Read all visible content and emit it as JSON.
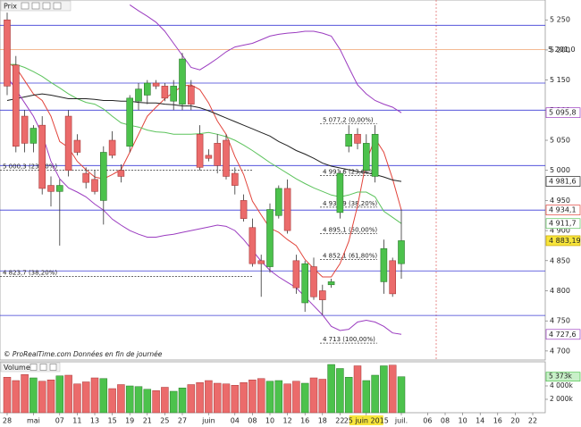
{
  "chart_data": {
    "type": "candlestick",
    "title": "Prix",
    "categories": [
      "28",
      null,
      null,
      "mai",
      null,
      null,
      "07",
      null,
      "11",
      null,
      "13",
      null,
      "15",
      null,
      "19",
      null,
      "21",
      null,
      "25",
      null,
      "27",
      null,
      null,
      "juin",
      null,
      null,
      "04",
      null,
      "08",
      null,
      "10",
      null,
      "12",
      null,
      "16",
      null,
      "18",
      null,
      "22",
      null,
      null,
      "25 juin 2015",
      null,
      null,
      null,
      "juil."
    ],
    "future_categories": [
      null,
      null,
      "06",
      null,
      "08",
      null,
      "10",
      null,
      "14",
      null,
      "16",
      null,
      "20",
      null,
      "22"
    ],
    "open": [
      5250,
      5175,
      5090,
      5045,
      5075,
      4975,
      4965,
      5090,
      5050,
      4995,
      4985,
      4950,
      5050,
      5000,
      5040,
      5115,
      5125,
      5145,
      5140,
      5115,
      5110,
      5140,
      5060,
      5025,
      5045,
      5050,
      4995,
      4950,
      4905,
      4850,
      4840,
      4925,
      4970,
      4850,
      4780,
      4840,
      4800,
      4810,
      4930,
      5040,
      5060,
      5000,
      4990,
      4815,
      4850,
      4845
    ],
    "high": [
      5262,
      5190,
      5100,
      5075,
      5090,
      4990,
      4985,
      5100,
      5060,
      5005,
      5000,
      5040,
      5065,
      5010,
      5125,
      5145,
      5150,
      5150,
      5145,
      5150,
      5195,
      5150,
      5075,
      5035,
      5060,
      5060,
      5005,
      4960,
      4920,
      4860,
      4945,
      4975,
      4985,
      4860,
      4850,
      4855,
      4810,
      4820,
      5000,
      5075,
      5070,
      5060,
      5075,
      4885,
      4855,
      4935
    ],
    "low": [
      5125,
      5030,
      5030,
      5030,
      4960,
      4940,
      4875,
      4990,
      5025,
      4970,
      4960,
      4910,
      5020,
      4980,
      5030,
      5100,
      5110,
      5135,
      5115,
      5100,
      5100,
      5100,
      5000,
      5015,
      4995,
      4985,
      4960,
      4915,
      4840,
      4790,
      4830,
      4920,
      4895,
      4795,
      4765,
      4785,
      4760,
      4805,
      4920,
      5030,
      5035,
      4995,
      4980,
      4795,
      4790,
      4820
    ],
    "close": [
      5140,
      5040,
      5045,
      5070,
      4970,
      4965,
      4975,
      5000,
      5030,
      4980,
      4965,
      5030,
      5025,
      4990,
      5120,
      5135,
      5145,
      5140,
      5120,
      5140,
      5185,
      5110,
      5005,
      5020,
      5008,
      4990,
      4975,
      4920,
      4845,
      4845,
      4935,
      4970,
      4900,
      4805,
      4845,
      4790,
      4785,
      4815,
      4995,
      5060,
      5045,
      5045,
      5060,
      4870,
      4795,
      4883.19
    ],
    "close_label": "4 883,19",
    "ylim": [
      4685,
      5283
    ],
    "yticks": [
      {
        "value": 5250,
        "label": "5 250"
      },
      {
        "value": 5200,
        "label": "5 200"
      },
      {
        "value": 5150,
        "label": "5 150"
      },
      {
        "value": 5100,
        "label": "5 100"
      },
      {
        "value": 5050,
        "label": "5 050"
      },
      {
        "value": 5000,
        "label": "5 000"
      },
      {
        "value": 4950,
        "label": "4 950"
      },
      {
        "value": 4900,
        "label": "4 900"
      },
      {
        "value": 4850,
        "label": "4 850"
      },
      {
        "value": 4800,
        "label": "4 800"
      },
      {
        "value": 4750,
        "label": "4 750"
      },
      {
        "value": 4700,
        "label": "4 700"
      }
    ],
    "series": [
      {
        "color": "#e2453c",
        "last_label": "4 934,1",
        "values": [
          5179,
          5171,
          5149,
          5127,
          5116,
          5090,
          5048,
          5038,
          5015,
          5001,
          4989,
          4986,
          4993,
          5001,
          5030,
          5060,
          5090,
          5105,
          5119,
          5130,
          5140,
          5142,
          5134,
          5112,
          5082,
          5060,
          5023,
          4993,
          4949,
          4926,
          4904,
          4897,
          4885,
          4875,
          4852,
          4837,
          4823,
          4823,
          4845,
          4882,
          4941,
          5015,
          5053,
          5030,
          4986,
          4934.1
        ]
      },
      {
        "color": "#5cc35c",
        "last_label": "4 911,7",
        "values": [
          5176,
          5176,
          5171,
          5164,
          5156,
          5146,
          5137,
          5127,
          5119,
          5113,
          5110,
          5102,
          5090,
          5079,
          5075,
          5072,
          5067,
          5064,
          5063,
          5060,
          5060,
          5060,
          5061,
          5063,
          5060,
          5056,
          5050,
          5042,
          5033,
          5023,
          5013,
          5004,
          4995,
          4986,
          4978,
          4971,
          4965,
          4959,
          4956,
          4959,
          4964,
          4964,
          4956,
          4932,
          4922,
          4911.7
        ]
      },
      {
        "color": "#222222",
        "last_label": "4 981,6",
        "values": [
          5116,
          5119,
          5122,
          5125,
          5127,
          5125,
          5122,
          5119,
          5119,
          5119,
          5118,
          5116,
          5116,
          5115,
          5115,
          5113,
          5112,
          5112,
          5110,
          5109,
          5107,
          5107,
          5104,
          5099,
          5093,
          5087,
          5081,
          5075,
          5069,
          5063,
          5057,
          5048,
          5041,
          5033,
          5027,
          5020,
          5012,
          5007,
          5004,
          5001,
          4998,
          4996,
          4993,
          4989,
          4984,
          4981.6
        ]
      },
      {
        "color": "#9b3cc0",
        "last_label": "5 095,8",
        "values": [
          null,
          null,
          null,
          null,
          null,
          null,
          null,
          null,
          null,
          null,
          null,
          null,
          null,
          null,
          5275,
          5265,
          5256,
          5246,
          5231,
          5211,
          5191,
          5171,
          5167,
          5176,
          5186,
          5197,
          5205,
          5208,
          5211,
          5217,
          5223,
          5226,
          5228,
          5229,
          5231,
          5231,
          5228,
          5223,
          5201,
          5171,
          5142,
          5127,
          5116,
          5110,
          5105,
          5095.8
        ]
      },
      {
        "color": "#9b3cc0",
        "last_label": "4 727,6",
        "values": [
          5156,
          5134,
          5112,
          5090,
          5060,
          5015,
          4986,
          4971,
          4964,
          4956,
          4944,
          4934,
          4919,
          4909,
          4900,
          4894,
          4889,
          4889,
          4892,
          4894,
          4897,
          4900,
          4903,
          4906,
          4909,
          4907,
          4900,
          4885,
          4867,
          4849,
          4834,
          4823,
          4814,
          4805,
          4790,
          4775,
          4760,
          4741,
          4734,
          4736,
          4748,
          4751,
          4748,
          4741,
          4730,
          4727.6
        ]
      }
    ],
    "levels": [
      5241,
      5145,
      5100,
      5008,
      4934,
      4833,
      4759
    ],
    "levels_color": "#3b3bd6",
    "resistance": {
      "value": 5201.0,
      "label": "5 201,0",
      "color": "#e8742a"
    },
    "fib_left": [
      {
        "value": 5000.3,
        "label": "5 000,3 (23,60%)"
      },
      {
        "value": 4823.7,
        "label": "4 823,7 (38,20%)"
      }
    ],
    "fib_right": [
      {
        "value": 5077.2,
        "label": "5 077,2 (0,00%)"
      },
      {
        "value": 4991.6,
        "label": "4 991,6 (23,60%)"
      },
      {
        "value": 4938.9,
        "label": "4 938,9 (38,20%)"
      },
      {
        "value": 4895.1,
        "label": "4 895,1 (50,00%)"
      },
      {
        "value": 4852.1,
        "label": "4 852,1 (61,80%)"
      },
      {
        "value": 4713,
        "label": "4 713 (100,00%)"
      }
    ],
    "volume": {
      "title": "Volume",
      "values": [
        5300,
        4800,
        5700,
        5200,
        4700,
        4900,
        5500,
        5600,
        4300,
        4600,
        5200,
        5100,
        3600,
        4200,
        4000,
        3900,
        3500,
        3300,
        3800,
        3200,
        3700,
        4200,
        4500,
        4800,
        4400,
        4300,
        4100,
        4500,
        4900,
        5100,
        4700,
        4800,
        4300,
        4700,
        4400,
        5200,
        5000,
        7200,
        6600,
        5300,
        7000,
        4800,
        5600,
        7000,
        7100,
        5373
      ],
      "ylim": [
        0,
        7600
      ],
      "yticks": [
        {
          "value": 2000,
          "label": "2 000k"
        },
        {
          "value": 4000,
          "label": "4 000k"
        }
      ],
      "last_label": "5 373k"
    },
    "footer": {
      "source": "© ProRealTime.com",
      "note": "Données en fin de journée"
    }
  }
}
